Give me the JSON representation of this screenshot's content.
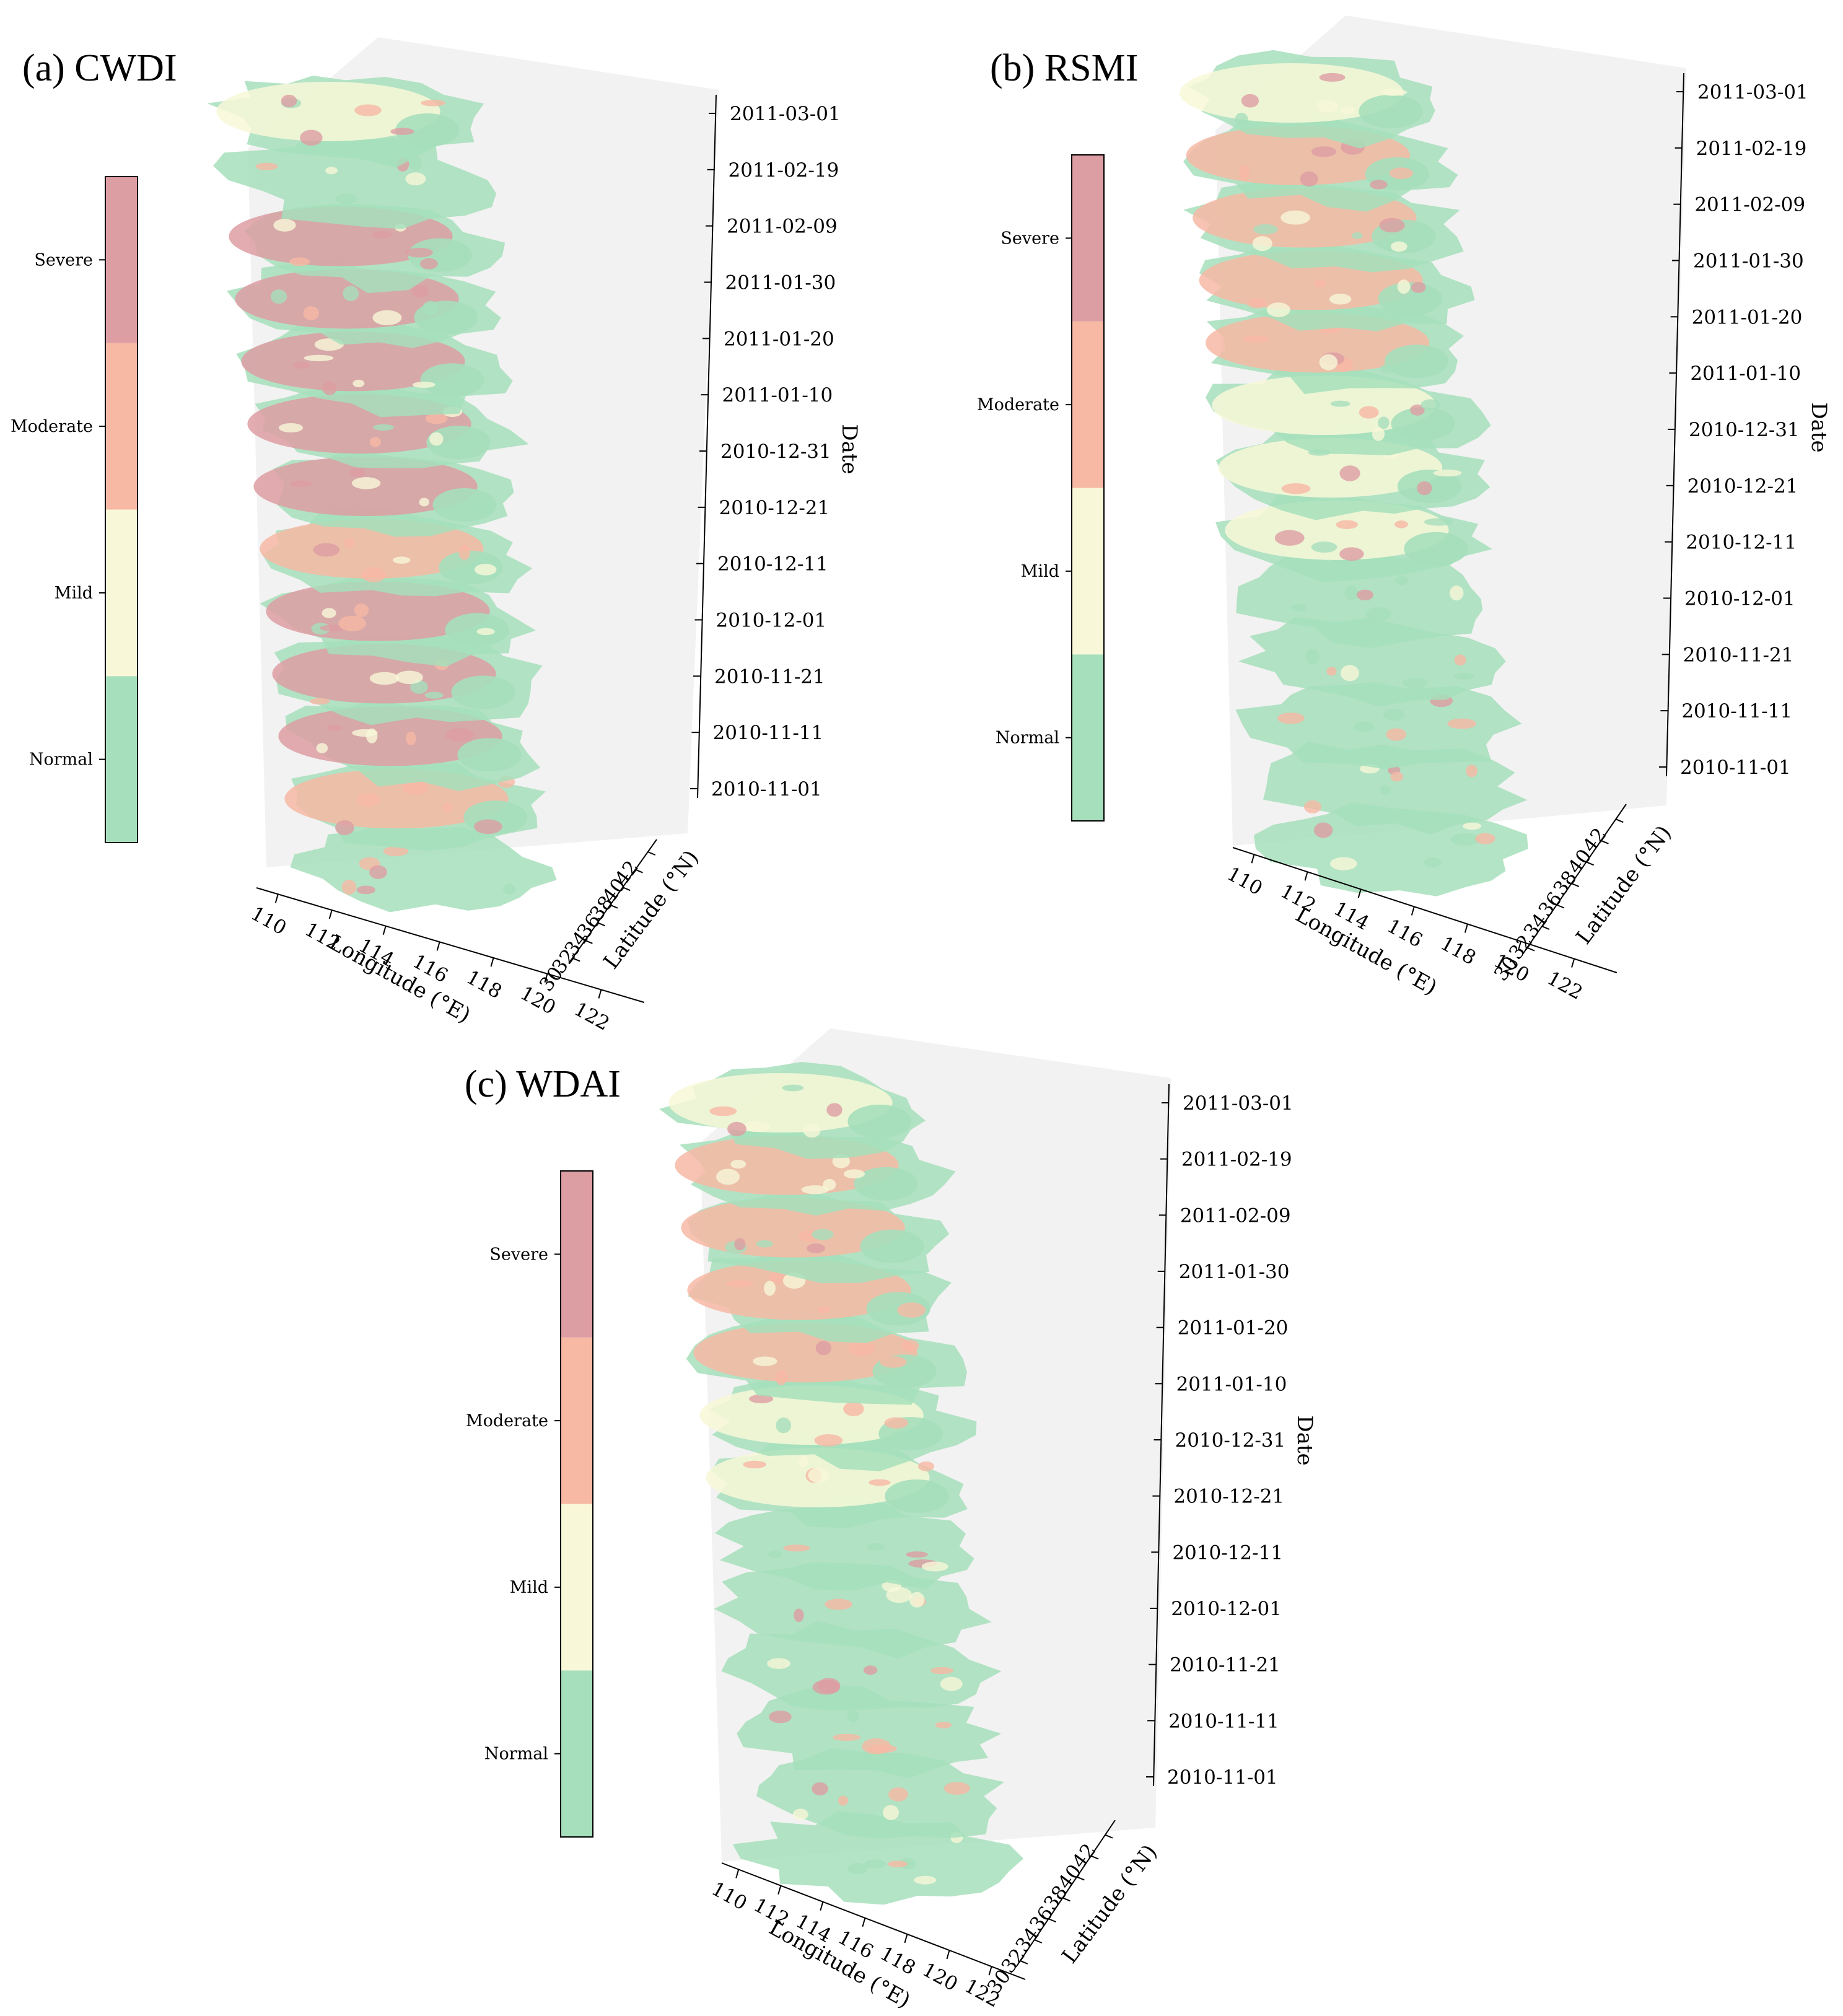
{
  "chart_data": {
    "type": "3d-stacked-map",
    "colors": {
      "Normal": "#a6dfbb",
      "Mild": "#f8f8d8",
      "Moderate": "#f7b8a4",
      "Severe": "#dd9ea3",
      "pane": "#f2f2f2"
    },
    "legend_levels": [
      "Normal",
      "Mild",
      "Moderate",
      "Severe"
    ],
    "dates": [
      "2010-11-01",
      "2010-11-11",
      "2010-11-21",
      "2010-12-01",
      "2010-12-11",
      "2010-12-21",
      "2010-12-31",
      "2011-01-10",
      "2011-01-20",
      "2011-01-30",
      "2011-02-09",
      "2011-02-19",
      "2011-03-01"
    ],
    "xlabel": "Longitude (°E)",
    "ylabel": "Latitude (°N)",
    "zlabel": "Date",
    "xticks": [
      "110",
      "112",
      "114",
      "116",
      "118",
      "120",
      "122"
    ],
    "yticks": [
      "30",
      "32",
      "34",
      "36",
      "38",
      "40",
      "42"
    ],
    "panels": [
      {
        "title": "(a) CWDI",
        "layer_dominant": [
          "Normal",
          "Moderate",
          "Severe",
          "Severe",
          "Severe",
          "Moderate",
          "Severe",
          "Severe",
          "Severe",
          "Severe",
          "Severe",
          "Normal",
          "Mild"
        ]
      },
      {
        "title": "(b) RSMI",
        "layer_dominant": [
          "Normal",
          "Normal",
          "Normal",
          "Normal",
          "Normal",
          "Mild",
          "Mild",
          "Mild",
          "Moderate",
          "Moderate",
          "Moderate",
          "Moderate",
          "Mild"
        ]
      },
      {
        "title": "(c) WDAI",
        "layer_dominant": [
          "Normal",
          "Normal",
          "Normal",
          "Normal",
          "Normal",
          "Normal",
          "Mild",
          "Mild",
          "Moderate",
          "Moderate",
          "Moderate",
          "Moderate",
          "Mild"
        ]
      }
    ]
  }
}
